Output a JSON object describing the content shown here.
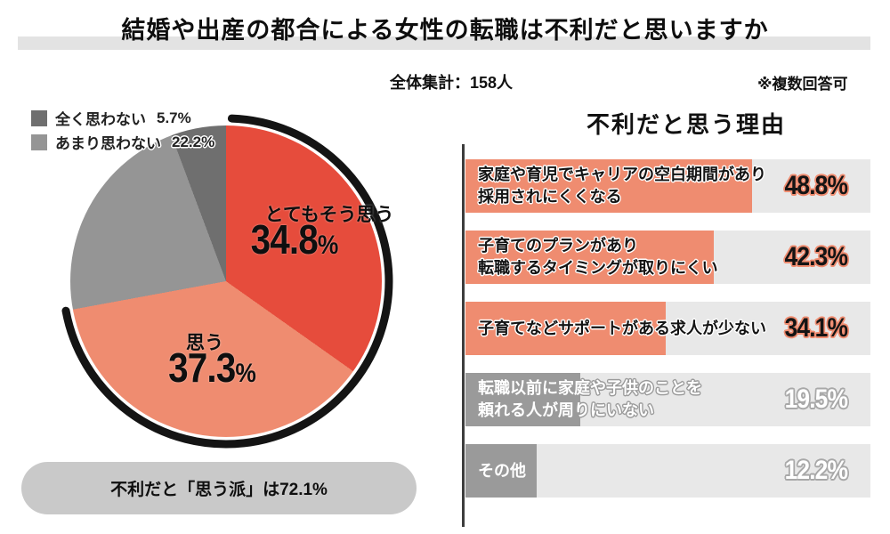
{
  "header": {
    "title": "結婚や出産の都合による女性の転職は不利だと思いますか",
    "subtitle": "全体集計：158人",
    "note": "※複数回答可"
  },
  "palette": {
    "strong_agree": "#e64c3c",
    "agree": "#ef8c70",
    "disagree": "#959595",
    "strong_disagree": "#6f6f6f",
    "bar_muted": "#9a9a9a",
    "bar_track": "#e8e8e8",
    "title_band": "#e3e3e3",
    "pill_bg": "#c9c9c9",
    "highlight_arc": "#141414",
    "axis_line": "#3d3d3d",
    "text_dark": "#0f0f0f",
    "text_light": "#ffffff"
  },
  "chart_data": [
    {
      "type": "pie",
      "title": "",
      "unit": "%",
      "start_angle_deg": 0,
      "direction": "clockwise",
      "slices": [
        {
          "label": "とてもそう思う",
          "value": 34.8,
          "color": "#e64c3c"
        },
        {
          "label": "思う",
          "value": 37.3,
          "color": "#ef8c70"
        },
        {
          "label": "あまり思わない",
          "value": 22.2,
          "color": "#959595"
        },
        {
          "label": "全く思わない",
          "value": 5.7,
          "color": "#6f6f6f"
        }
      ],
      "legend_items": [
        "全く思わない",
        "あまり思わない"
      ],
      "callout_slices": [
        "とてもそう思う",
        "思う"
      ],
      "highlight": {
        "label": "思う派",
        "percent": 72.1,
        "arc_color": "#141414"
      },
      "summary": "不利だと「思う派」は72.1%"
    },
    {
      "type": "bar",
      "orientation": "horizontal",
      "title": "不利だと思う理由",
      "unit": "%",
      "xlim": [
        0,
        69
      ],
      "track_color": "#e8e8e8",
      "categories": [
        "家庭や育児でキャリアの空白期間があり\n採用されにくくなる",
        "子育てのプランがあり\n転職するタイミングが取りにくい",
        "子育てなどサポートがある求人が少ない",
        "転職以前に家庭や子供のことを\n頼れる人が周りにいない",
        "その他"
      ],
      "values": [
        48.8,
        42.3,
        34.1,
        19.5,
        12.2
      ],
      "bar_colors": [
        "#ef8c70",
        "#ef8c70",
        "#ef8c70",
        "#9a9a9a",
        "#9a9a9a"
      ],
      "label_colors": [
        "#141414",
        "#141414",
        "#141414",
        "#ffffff",
        "#ffffff"
      ],
      "label_halo": [
        "#ffffff",
        "#ffffff",
        "#ffffff",
        "#9a9a9a",
        "#9a9a9a"
      ],
      "value_colors": [
        "#141414",
        "#141414",
        "#141414",
        "#ffffff",
        "#ffffff"
      ],
      "value_halo": [
        "#ef8c70",
        "#ef8c70",
        "#ef8c70",
        "#a8a8a8",
        "#a8a8a8"
      ]
    }
  ]
}
